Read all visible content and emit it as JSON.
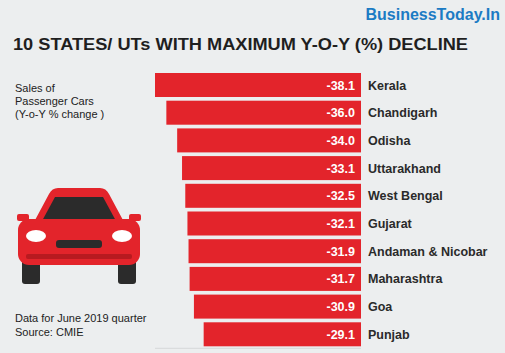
{
  "chart_data": {
    "type": "bar",
    "orientation": "horizontal",
    "header": "BusinessToday.In",
    "title": "10 STATES/ UTs WITH MAXIMUM Y-O-Y (%) DECLINE",
    "subtitle": [
      "Sales of",
      "Passenger Cars",
      "(Y-o-Y % change )"
    ],
    "annotations": [
      "Data for June 2019 quarter",
      "Source: CMIE"
    ],
    "categories": [
      "Kerala",
      "Chandigarh",
      "Odisha",
      "Uttarakhand",
      "West Bengal",
      "Gujarat",
      "Andaman & Nicobar",
      "Maharashtra",
      "Goa",
      "Punjab"
    ],
    "values": [
      -38.1,
      -36.0,
      -34.0,
      -33.1,
      -32.5,
      -32.1,
      -31.9,
      -31.7,
      -30.9,
      -29.1
    ],
    "value_labels": [
      "-38.1",
      "-36.0",
      "-34.0",
      "-33.1",
      "-32.5",
      "-32.1",
      "-31.9",
      "-31.7",
      "-30.9",
      "-29.1"
    ],
    "color": "#e3242b",
    "xlim": [
      -38.1,
      0
    ],
    "xticks": [],
    "tick_labels": false,
    "data_labels": true,
    "grid": false
  }
}
